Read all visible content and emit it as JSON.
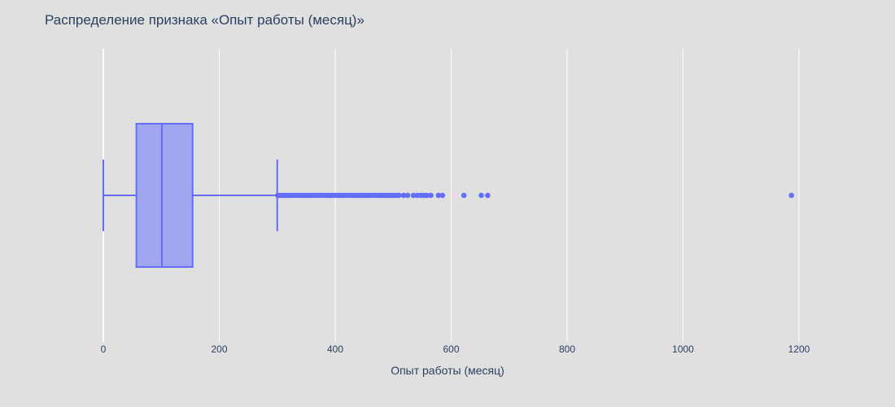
{
  "chart_data": {
    "type": "box",
    "orientation": "horizontal",
    "title": "Распределение признака «Опыт работы (месяц)»",
    "xlabel": "Опыт работы (месяц)",
    "ylabel": "",
    "xlim": [
      0,
      1300
    ],
    "xticks": [
      0,
      200,
      400,
      600,
      800,
      1000,
      1200
    ],
    "xtick_labels": [
      "0",
      "200",
      "400",
      "600",
      "800",
      "1000",
      "1200"
    ],
    "grid": true,
    "box": {
      "min": 0,
      "q1": 57,
      "median": 101,
      "q3": 154,
      "upper_fence": 300,
      "outliers": [
        302,
        305,
        310,
        315,
        320,
        325,
        330,
        335,
        340,
        345,
        350,
        355,
        360,
        365,
        370,
        375,
        380,
        385,
        390,
        395,
        400,
        405,
        410,
        415,
        420,
        425,
        430,
        435,
        440,
        445,
        450,
        455,
        460,
        465,
        470,
        475,
        480,
        485,
        490,
        495,
        500,
        505,
        510,
        518,
        525,
        535,
        542,
        548,
        553,
        558,
        565,
        578,
        585,
        622,
        652,
        663,
        1187
      ]
    },
    "colors": {
      "box_fill": "#a0a6ef",
      "box_line": "#636efa",
      "background": "#e0e0e0",
      "grid": "#ffffff",
      "text": "#2a3f5f"
    }
  }
}
